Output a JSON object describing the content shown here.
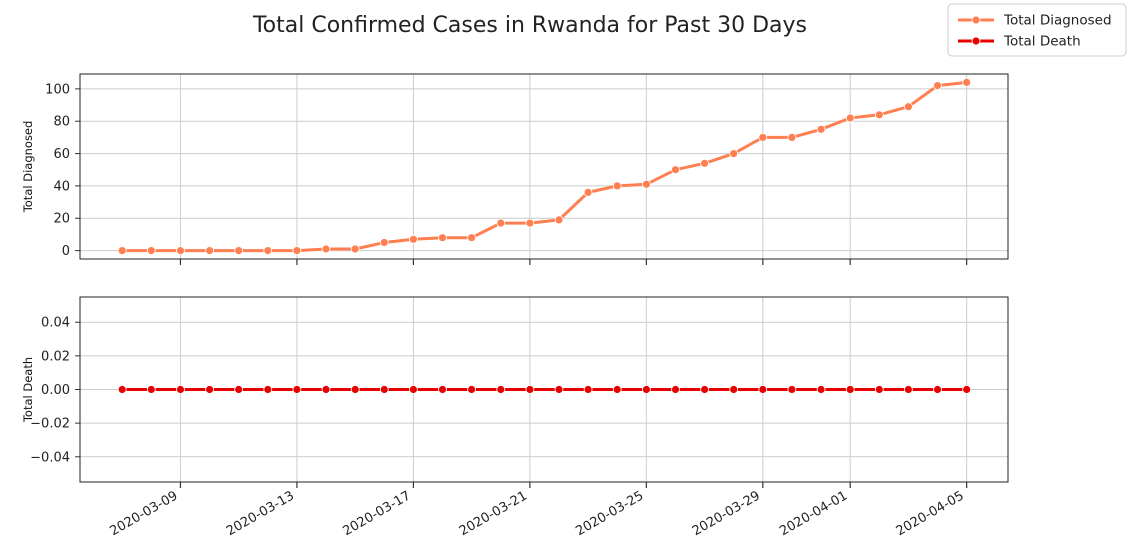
{
  "title": "Total Confirmed Cases in Rwanda for Past 30 Days",
  "legend": {
    "placement": "top-right",
    "items": [
      {
        "label": "Total Diagnosed",
        "color": "#FF7F50"
      },
      {
        "label": "Total Death",
        "color": "#E80000"
      }
    ]
  },
  "chart_data": [
    {
      "type": "line",
      "ylabel": "Total Diagnosed",
      "xlabel": "",
      "ylim": [
        -5.2,
        109.2
      ],
      "yticks": [
        "0",
        "20",
        "40",
        "60",
        "80",
        "100"
      ],
      "grid": true,
      "x": [
        "2020-03-07",
        "2020-03-08",
        "2020-03-09",
        "2020-03-10",
        "2020-03-11",
        "2020-03-12",
        "2020-03-13",
        "2020-03-14",
        "2020-03-15",
        "2020-03-16",
        "2020-03-17",
        "2020-03-18",
        "2020-03-19",
        "2020-03-20",
        "2020-03-21",
        "2020-03-22",
        "2020-03-23",
        "2020-03-24",
        "2020-03-25",
        "2020-03-26",
        "2020-03-27",
        "2020-03-28",
        "2020-03-29",
        "2020-03-30",
        "2020-03-31",
        "2020-04-01",
        "2020-04-02",
        "2020-04-03",
        "2020-04-04",
        "2020-04-05"
      ],
      "series": [
        {
          "name": "Total Diagnosed",
          "color": "#FF7F50",
          "values": [
            0,
            0,
            0,
            0,
            0,
            0,
            0,
            1,
            1,
            5,
            7,
            8,
            8,
            17,
            17,
            19,
            36,
            40,
            41,
            50,
            54,
            60,
            70,
            70,
            75,
            82,
            84,
            89,
            102,
            104
          ]
        }
      ]
    },
    {
      "type": "line",
      "ylabel": "Total Death",
      "xlabel": "",
      "ylim": [
        -0.055,
        0.055
      ],
      "yticks": [
        "−0.04",
        "−0.02",
        "0.00",
        "0.02",
        "0.04"
      ],
      "grid": true,
      "xticks": [
        "2020-03-09",
        "2020-03-13",
        "2020-03-17",
        "2020-03-21",
        "2020-03-25",
        "2020-03-29",
        "2020-04-01",
        "2020-04-05"
      ],
      "x": [
        "2020-03-07",
        "2020-03-08",
        "2020-03-09",
        "2020-03-10",
        "2020-03-11",
        "2020-03-12",
        "2020-03-13",
        "2020-03-14",
        "2020-03-15",
        "2020-03-16",
        "2020-03-17",
        "2020-03-18",
        "2020-03-19",
        "2020-03-20",
        "2020-03-21",
        "2020-03-22",
        "2020-03-23",
        "2020-03-24",
        "2020-03-25",
        "2020-03-26",
        "2020-03-27",
        "2020-03-28",
        "2020-03-29",
        "2020-03-30",
        "2020-03-31",
        "2020-04-01",
        "2020-04-02",
        "2020-04-03",
        "2020-04-04",
        "2020-04-05"
      ],
      "series": [
        {
          "name": "Total Death",
          "color": "#E80000",
          "values": [
            0,
            0,
            0,
            0,
            0,
            0,
            0,
            0,
            0,
            0,
            0,
            0,
            0,
            0,
            0,
            0,
            0,
            0,
            0,
            0,
            0,
            0,
            0,
            0,
            0,
            0,
            0,
            0,
            0,
            0
          ]
        }
      ]
    }
  ]
}
